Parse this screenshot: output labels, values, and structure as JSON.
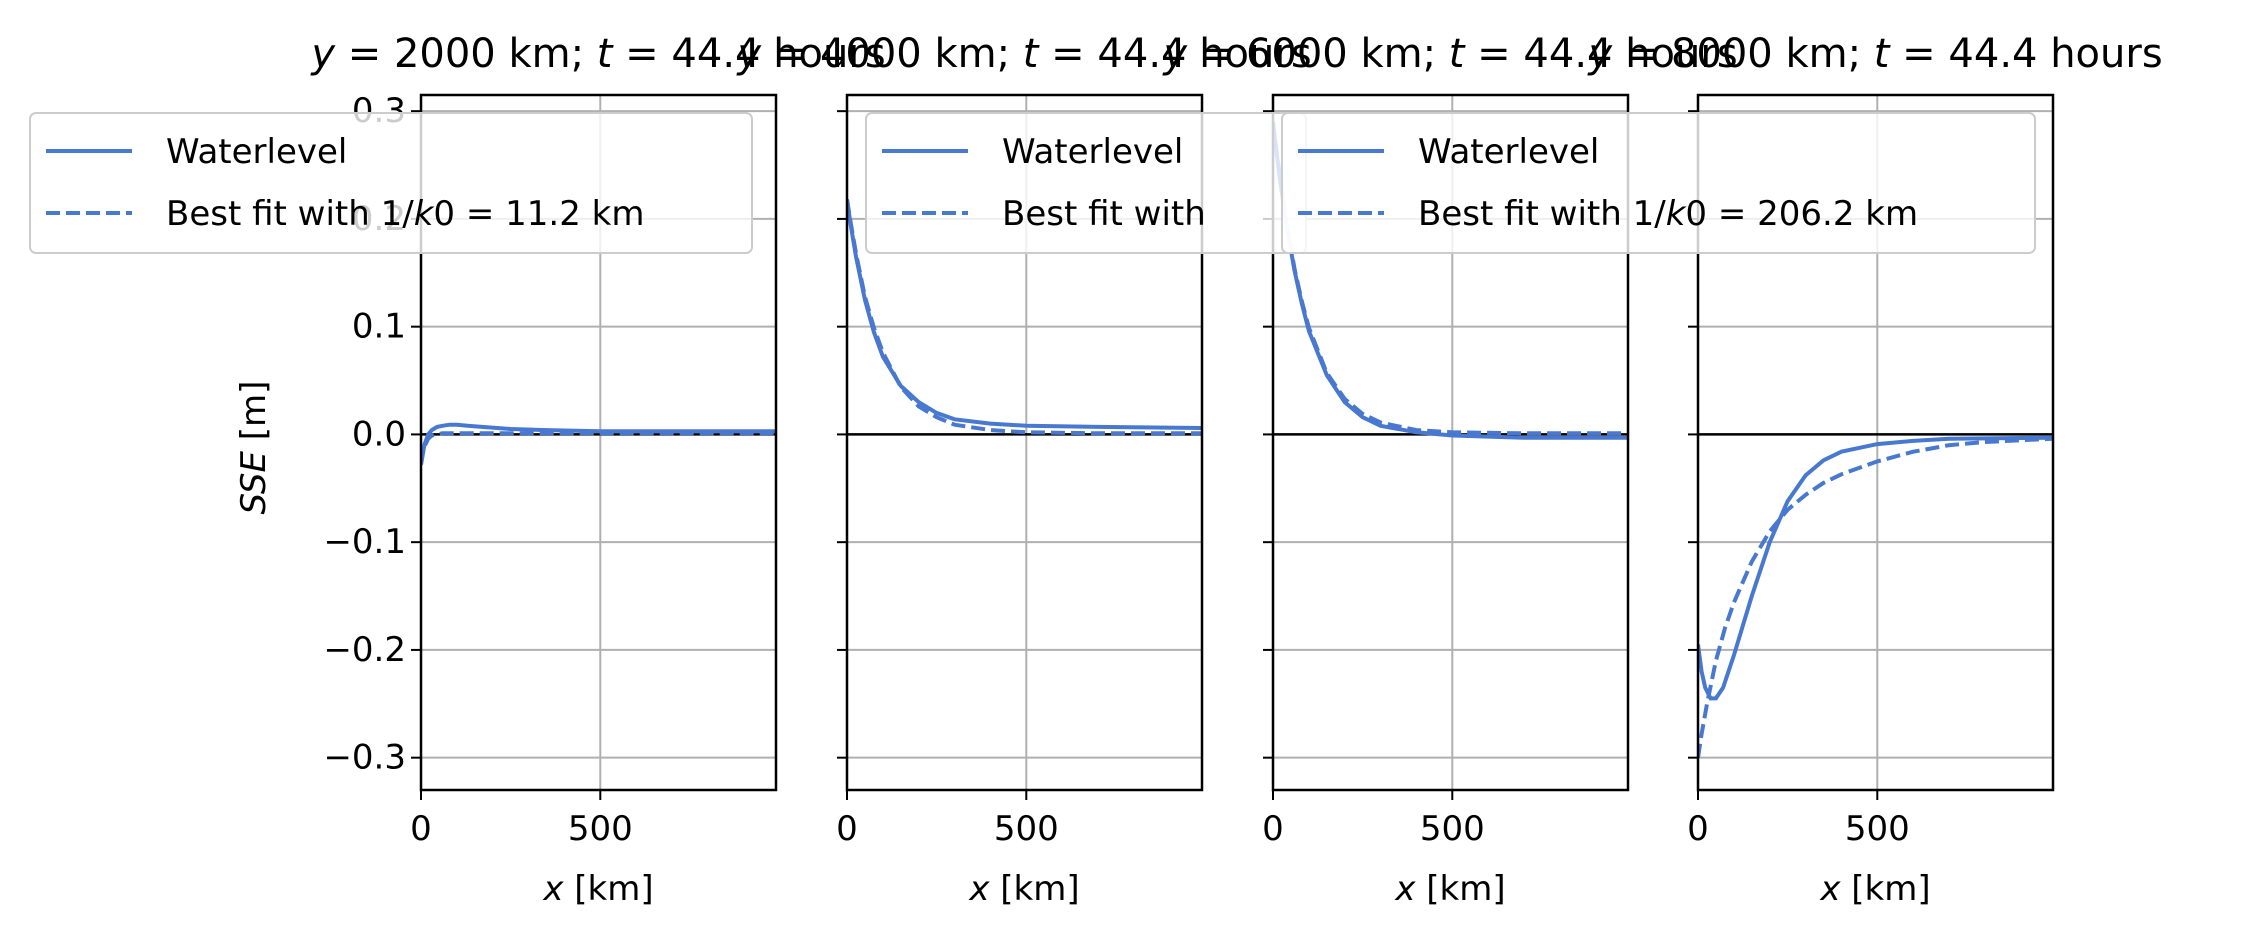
{
  "chart_data": [
    {
      "type": "line",
      "title": "y = 2000 km; t = 44.4 hours",
      "xlabel": "x [km]",
      "ylabel": "SSE [m]",
      "xlim": [
        0,
        990
      ],
      "ylim": [
        -0.33,
        0.315
      ],
      "xticks": [
        0,
        500
      ],
      "yticks": [
        -0.3,
        -0.2,
        -0.1,
        0.0,
        0.1,
        0.2,
        0.3
      ],
      "grid": true,
      "legend": "upper-left",
      "series": [
        {
          "name": "Waterlevel",
          "style": "solid",
          "x": [
            0,
            5,
            10,
            20,
            30,
            45,
            60,
            80,
            100,
            130,
            170,
            250,
            350,
            500,
            700,
            990
          ],
          "y": [
            -0.028,
            -0.018,
            -0.009,
            0.0,
            0.004,
            0.007,
            0.008,
            0.009,
            0.009,
            0.008,
            0.007,
            0.005,
            0.004,
            0.003,
            0.003,
            0.003
          ]
        },
        {
          "name": "Best fit with 1/k0 = 11.2 km",
          "style": "dashed",
          "x": [
            0,
            5,
            10,
            20,
            30,
            45,
            60,
            80,
            100,
            130,
            170,
            250,
            350,
            500,
            700,
            990
          ],
          "y": [
            -0.028,
            -0.018,
            -0.011,
            -0.004,
            -0.001,
            0.0,
            0.001,
            0.001,
            0.001,
            0.001,
            0.001,
            0.001,
            0.001,
            0.001,
            0.001,
            0.001
          ]
        }
      ]
    },
    {
      "type": "line",
      "title": "y = 4000 km; t = 44.4 hours",
      "xlabel": "x [km]",
      "xlim": [
        0,
        990
      ],
      "ylim": [
        -0.33,
        0.315
      ],
      "xticks": [
        0,
        500
      ],
      "grid": true,
      "legend": "upper-center",
      "series": [
        {
          "name": "Waterlevel",
          "style": "solid",
          "x": [
            0,
            10,
            25,
            50,
            75,
            100,
            150,
            200,
            250,
            300,
            400,
            500,
            700,
            990
          ],
          "y": [
            0.218,
            0.195,
            0.165,
            0.125,
            0.095,
            0.072,
            0.045,
            0.03,
            0.02,
            0.014,
            0.01,
            0.008,
            0.007,
            0.006
          ]
        },
        {
          "name": "Best fit with",
          "style": "dashed",
          "x": [
            0,
            10,
            25,
            50,
            75,
            100,
            150,
            200,
            250,
            300,
            400,
            500,
            700,
            990
          ],
          "y": [
            0.218,
            0.197,
            0.168,
            0.128,
            0.099,
            0.076,
            0.044,
            0.026,
            0.016,
            0.009,
            0.004,
            0.002,
            0.001,
            0.001
          ]
        }
      ]
    },
    {
      "type": "line",
      "title": "y = 6000 km; t = 44.4 hours",
      "xlabel": "x [km]",
      "xlim": [
        0,
        990
      ],
      "ylim": [
        -0.33,
        0.315
      ],
      "xticks": [
        0,
        500
      ],
      "grid": true,
      "legend": "upper-center",
      "series": [
        {
          "name": "Waterlevel",
          "style": "solid",
          "x": [
            0,
            5,
            20,
            40,
            60,
            80,
            100,
            150,
            200,
            250,
            300,
            400,
            500,
            700,
            990
          ],
          "y": [
            0.29,
            0.275,
            0.235,
            0.19,
            0.152,
            0.122,
            0.096,
            0.055,
            0.03,
            0.016,
            0.008,
            0.002,
            -0.001,
            -0.003,
            -0.003
          ]
        },
        {
          "name": "Best fit with",
          "style": "dashed",
          "x": [
            0,
            5,
            20,
            40,
            60,
            80,
            100,
            150,
            200,
            250,
            300,
            400,
            500,
            700,
            990
          ],
          "y": [
            0.29,
            0.276,
            0.237,
            0.192,
            0.154,
            0.124,
            0.099,
            0.057,
            0.033,
            0.019,
            0.011,
            0.004,
            0.002,
            0.001,
            0.001
          ]
        }
      ]
    },
    {
      "type": "line",
      "title": "y = 8000 km; t = 44.4 hours",
      "xlabel": "x [km]",
      "xlim": [
        0,
        990
      ],
      "ylim": [
        -0.33,
        0.315
      ],
      "xticks": [
        0,
        500
      ],
      "grid": true,
      "legend": "upper-right",
      "series": [
        {
          "name": "Waterlevel",
          "style": "solid",
          "x": [
            0,
            10,
            20,
            35,
            50,
            70,
            100,
            150,
            200,
            250,
            300,
            350,
            400,
            500,
            600,
            700,
            990
          ],
          "y": [
            -0.195,
            -0.22,
            -0.235,
            -0.245,
            -0.245,
            -0.235,
            -0.205,
            -0.15,
            -0.1,
            -0.062,
            -0.038,
            -0.024,
            -0.016,
            -0.009,
            -0.006,
            -0.004,
            -0.003
          ]
        },
        {
          "name": "Best fit with 1/k0 = 206.2 km",
          "style": "dashed",
          "x": [
            0,
            10,
            25,
            50,
            75,
            100,
            150,
            200,
            250,
            300,
            350,
            400,
            500,
            600,
            700,
            800,
            990
          ],
          "y": [
            -0.3,
            -0.278,
            -0.25,
            -0.21,
            -0.18,
            -0.156,
            -0.118,
            -0.09,
            -0.07,
            -0.056,
            -0.045,
            -0.037,
            -0.025,
            -0.016,
            -0.01,
            -0.007,
            -0.004
          ]
        }
      ]
    }
  ],
  "colors": {
    "line": "#4878cf",
    "grid": "#b0b0b0",
    "axis": "#000000"
  }
}
